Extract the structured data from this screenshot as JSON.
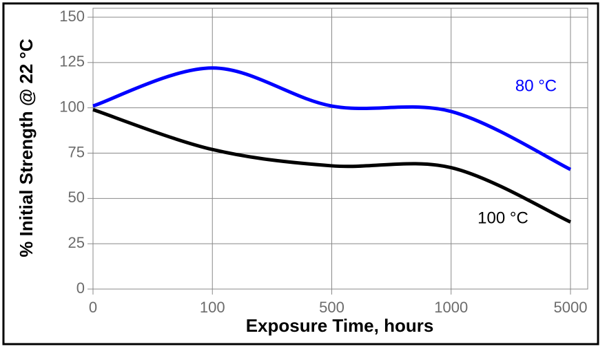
{
  "chart_data": {
    "type": "line",
    "y_label": "% Initial Strength @ 22 °C",
    "x_label": "Exposure Time, hours",
    "categories": [
      "0",
      "100",
      "500",
      "1000",
      "5000"
    ],
    "series": [
      {
        "name": "80 °C",
        "color": "#0000ff",
        "values": [
          101,
          122,
          101,
          98,
          66
        ]
      },
      {
        "name": "100 °C",
        "color": "#000000",
        "values": [
          99,
          77,
          68,
          67,
          37
        ]
      }
    ],
    "ylim": [
      0,
      150
    ],
    "yticks": [
      0,
      25,
      50,
      75,
      100,
      125,
      150
    ],
    "grid": true
  }
}
